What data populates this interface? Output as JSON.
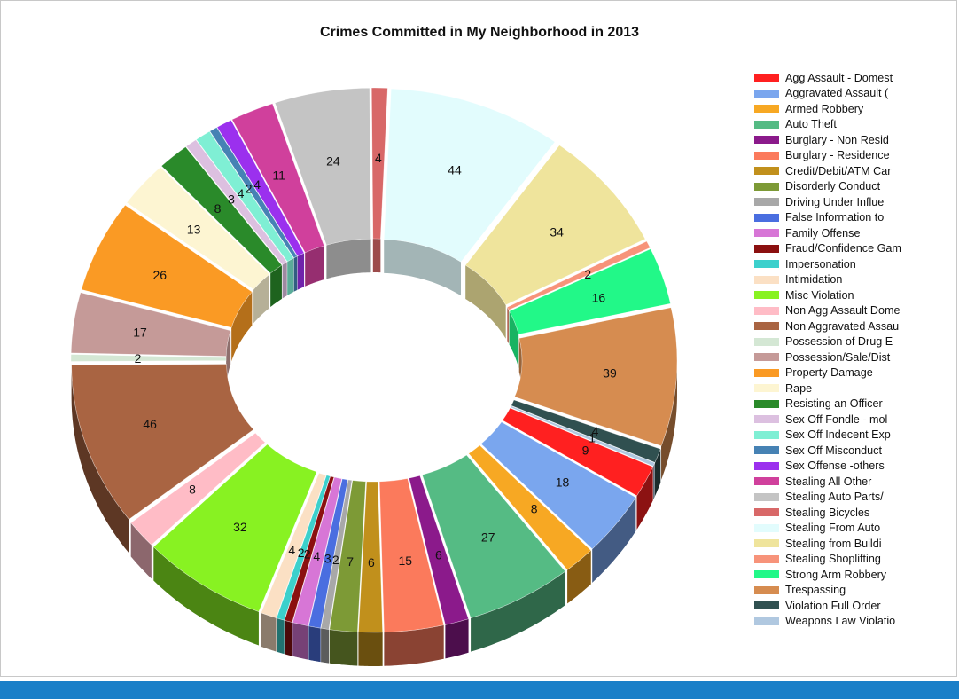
{
  "chart_data": {
    "type": "pie",
    "title": "Crimes Committed in My Neighborhood in 2013",
    "legend_position": "right",
    "slices": [
      {
        "name": "Agg Assault - Domest",
        "value": 9,
        "color": "#ff2020"
      },
      {
        "name": "Aggravated Assault (",
        "value": 18,
        "color": "#7aa6ee"
      },
      {
        "name": "Armed Robbery",
        "value": 8,
        "color": "#f7a823"
      },
      {
        "name": "Auto Theft",
        "value": 27,
        "color": "#55bb84"
      },
      {
        "name": "Burglary - Non Resid",
        "value": 6,
        "color": "#8b1a8b"
      },
      {
        "name": "Burglary - Residence",
        "value": 15,
        "color": "#fb7a5c"
      },
      {
        "name": "Credit/Debit/ATM Car",
        "value": 6,
        "color": "#c1901c"
      },
      {
        "name": "Disorderly Conduct",
        "value": 7,
        "color": "#7d9a36"
      },
      {
        "name": "Driving Under Influe",
        "value": 2,
        "color": "#a8a8a8"
      },
      {
        "name": "False Information to",
        "value": 3,
        "color": "#4a6ee0"
      },
      {
        "name": "Family Offense",
        "value": 4,
        "color": "#d776d6"
      },
      {
        "name": "Fraud/Confidence Gam",
        "value": 2,
        "color": "#8b1010"
      },
      {
        "name": "Impersonation",
        "value": 2,
        "color": "#3cd0cc"
      },
      {
        "name": "Intimidation",
        "value": 4,
        "color": "#fbe0c4"
      },
      {
        "name": "Misc Violation",
        "value": 32,
        "color": "#88f222"
      },
      {
        "name": "Non Agg Assault Dome",
        "value": 8,
        "color": "#ffbcc6"
      },
      {
        "name": "Non Aggravated Assau",
        "value": 46,
        "color": "#a96442"
      },
      {
        "name": "Possession of Drug E",
        "value": 2,
        "color": "#d4e7d4"
      },
      {
        "name": "Possession/Sale/Dist",
        "value": 17,
        "color": "#c59a98"
      },
      {
        "name": "Property Damage",
        "value": 26,
        "color": "#fa9a24"
      },
      {
        "name": "Rape",
        "value": 13,
        "color": "#fdf5d2"
      },
      {
        "name": "Resisting an Officer",
        "value": 8,
        "color": "#2a8a2a"
      },
      {
        "name": "Sex Off Fondle - mol",
        "value": 3,
        "color": "#dcc0e0"
      },
      {
        "name": "Sex Off Indecent Exp",
        "value": 4,
        "color": "#7fefd4"
      },
      {
        "name": "Sex Off Misconduct",
        "value": 2,
        "color": "#4682b4"
      },
      {
        "name": "Sex Offense -others",
        "value": 4,
        "color": "#9b30ee"
      },
      {
        "name": "Stealing All Other",
        "value": 11,
        "color": "#d0409c"
      },
      {
        "name": "Stealing Auto Parts/",
        "value": 24,
        "color": "#c4c4c4"
      },
      {
        "name": "Stealing Bicycles",
        "value": 4,
        "color": "#d86868"
      },
      {
        "name": "Stealing From Auto",
        "value": 44,
        "color": "#e2fcfd"
      },
      {
        "name": "Stealing from Buildi",
        "value": 34,
        "color": "#efe49c"
      },
      {
        "name": "Stealing Shoplifting",
        "value": 2,
        "color": "#f7937a"
      },
      {
        "name": "Strong Arm Robbery",
        "value": 16,
        "color": "#22f888"
      },
      {
        "name": "Trespassing",
        "value": 39,
        "color": "#d68c50"
      },
      {
        "name": "Violation Full Order",
        "value": 4,
        "color": "#305050"
      },
      {
        "name": "Weapons Law Violatio",
        "value": 1,
        "color": "#b0c8e0"
      }
    ]
  }
}
